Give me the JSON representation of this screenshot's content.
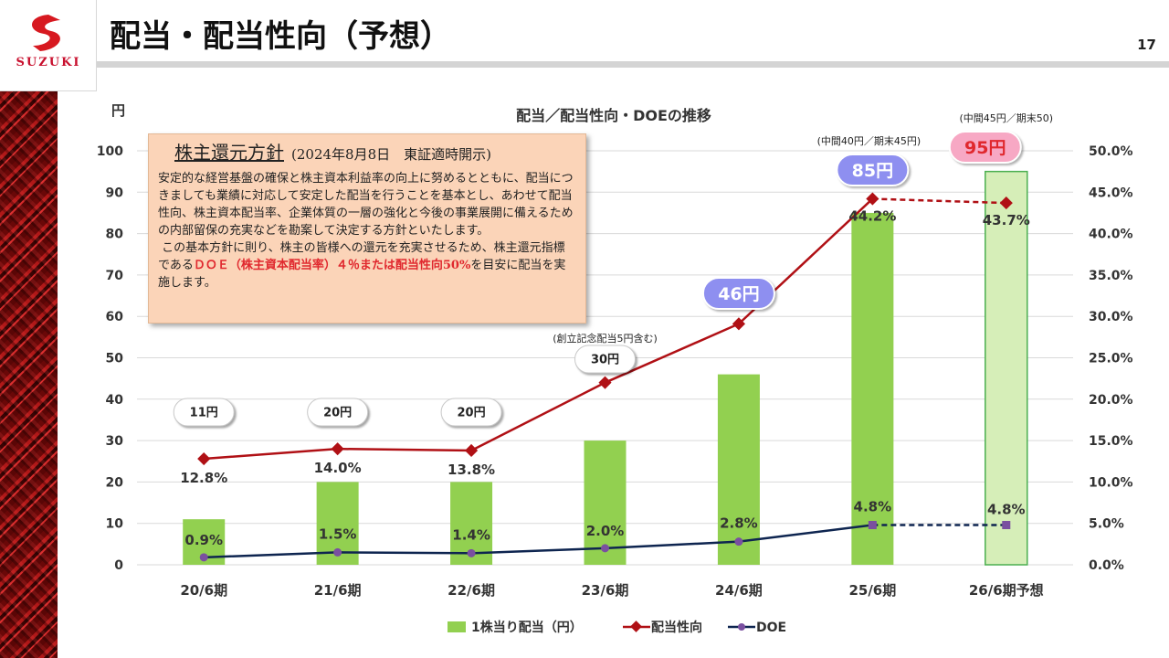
{
  "header": {
    "title": "配当・配当性向（予想）",
    "page_number": "17",
    "logo_text": "SUZUKI"
  },
  "policy": {
    "heading": "株主還元方針",
    "date": "(2024年8月8日　東証適時開示)",
    "body_1": "安定的な経営基盤の確保と株主資本利益率の向上に努めるとともに、配当につきましても業績に対応して安定した配当を行うことを基本とし、あわせて配当性向、株主資本配当率、企業体質の一層の強化と今後の事業展開に備えるための内部留保の充実などを勘案して決定する方針といたします。",
    "body_2": "この基本方針に則り、株主の皆様への還元を充実させるため、株主還元指標である",
    "body_red": "ＤＯＥ（株主資本配当率）４％または配当性向50%",
    "body_3": "を目安に配当を実施します。"
  },
  "colors": {
    "bar": "#92d050",
    "bar_forecast": "#d6eeb8",
    "payout_line": "#b01015",
    "doe_line": "#0e2550",
    "doe_marker": "#7a4fa0",
    "bubble_purple": "#8e8ff0",
    "bubble_pink": "#f7a8c4",
    "bubble_pink_text": "#e0282e"
  },
  "chart_data": {
    "type": "bar",
    "title": "配当／配当性向・DOEの推移",
    "y_left_unit": "円",
    "categories": [
      "20/6期",
      "21/6期",
      "22/6期",
      "23/6期",
      "24/6期",
      "25/6期",
      "26/6期予想"
    ],
    "ylim_left": [
      0,
      100
    ],
    "ylim_right": [
      0,
      50
    ],
    "y_left_ticks": [
      "0",
      "10",
      "20",
      "30",
      "40",
      "50",
      "60",
      "70",
      "80",
      "90",
      "100"
    ],
    "y_right_ticks": [
      "0.0%",
      "5.0%",
      "10.0%",
      "15.0%",
      "20.0%",
      "25.0%",
      "30.0%",
      "35.0%",
      "40.0%",
      "45.0%",
      "50.0%"
    ],
    "series": [
      {
        "name": "1株当り配当（円）",
        "type": "bar",
        "axis": "left",
        "values": [
          11,
          20,
          20,
          30,
          46,
          85,
          95
        ],
        "labels": [
          "11円",
          "20円",
          "20円",
          "30円",
          "46円",
          "85円",
          "95円"
        ]
      },
      {
        "name": "配当性向",
        "type": "line",
        "axis": "right",
        "values": [
          12.8,
          14.0,
          13.8,
          22.0,
          29.1,
          44.2,
          43.7
        ],
        "labels": [
          "12.8%",
          "14.0%",
          "13.8%",
          "22.0%",
          "29.1%",
          "44.2%",
          "43.7%"
        ]
      },
      {
        "name": "DOE",
        "type": "line",
        "axis": "right",
        "values": [
          0.9,
          1.5,
          1.4,
          2.0,
          2.8,
          4.8,
          4.8
        ],
        "labels": [
          "0.9%",
          "1.5%",
          "1.4%",
          "2.0%",
          "2.8%",
          "4.8%",
          "4.8%"
        ]
      }
    ],
    "annotations": [
      "(創立記念配当5円含む)",
      "(中間40円／期末45円)",
      "(中間45円／期末50)"
    ],
    "legend_position": "bottom",
    "grid": true,
    "forecast_index": 6
  }
}
